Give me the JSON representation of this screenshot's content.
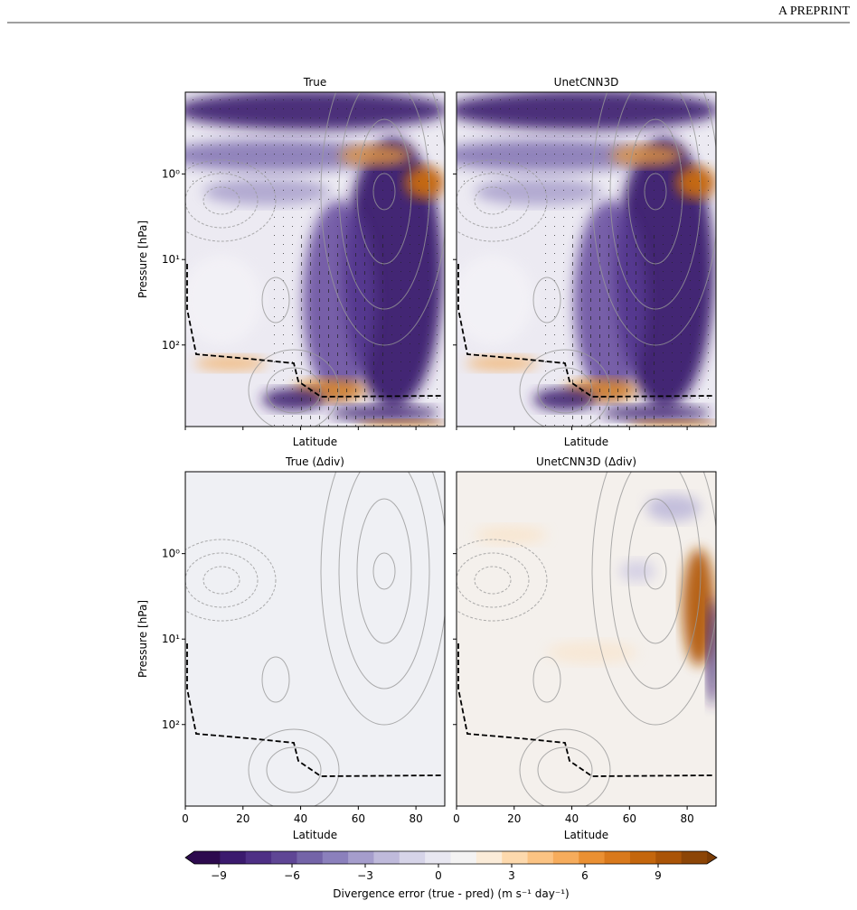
{
  "header": {
    "running_title": "A PREPRINT"
  },
  "figure": {
    "panels": [
      {
        "title": "True",
        "xlabel": "Latitude",
        "ylabel": "Pressure [hPa]"
      },
      {
        "title": "UnetCNN3D",
        "xlabel": "Latitude"
      },
      {
        "title": "True (Δdiv)",
        "xlabel": "Latitude",
        "ylabel": "Pressure [hPa]"
      },
      {
        "title": "UnetCNN3D (Δdiv)",
        "xlabel": "Latitude"
      }
    ],
    "x_axis": {
      "lim": [
        0,
        90
      ],
      "ticks": [
        0,
        20,
        40,
        60,
        80
      ]
    },
    "y_axis": {
      "log": true,
      "inverted": true,
      "lim": [
        0.11,
        900
      ],
      "ticks": [
        {
          "value": 1,
          "label": "10⁰"
        },
        {
          "value": 10,
          "label": "10¹"
        },
        {
          "value": 100,
          "label": "10²"
        }
      ]
    },
    "colorbar": {
      "lim": [
        -10,
        11
      ],
      "ticks": [
        {
          "value": -9,
          "label": "−9"
        },
        {
          "value": -6,
          "label": "−6"
        },
        {
          "value": -3,
          "label": "−3"
        },
        0,
        3,
        6,
        9
      ],
      "label": "Divergence error (true - pred) (m s⁻¹ day⁻¹)"
    }
  }
}
